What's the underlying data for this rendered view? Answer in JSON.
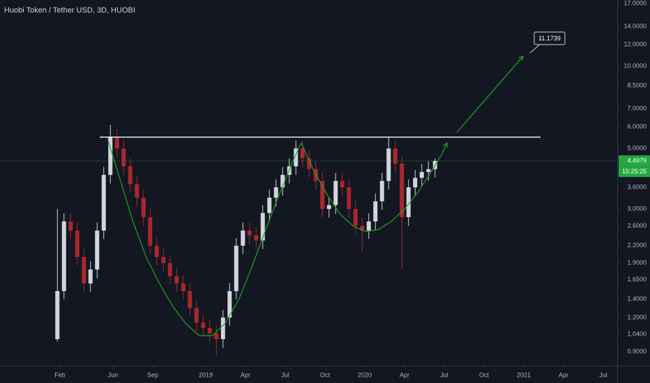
{
  "chart_data": {
    "type": "candlestick",
    "title": "Huobi Token / Tether USD, 3D, HUOBI",
    "log_scale": true,
    "grid": false,
    "up_color": "#d1d4dc",
    "down_color": "#a8282d",
    "xlim": [
      -3.53,
      43.05
    ],
    "ylim": [
      0.8,
      17.5
    ],
    "xticks": [
      {
        "value": 1,
        "label": "Feb"
      },
      {
        "value": 5,
        "label": "Jun"
      },
      {
        "value": 8,
        "label": "Sep"
      },
      {
        "value": 12,
        "label": "2019"
      },
      {
        "value": 15,
        "label": "Apr"
      },
      {
        "value": 18,
        "label": "Jul"
      },
      {
        "value": 21,
        "label": "Oct"
      },
      {
        "value": 24,
        "label": "2020"
      },
      {
        "value": 27,
        "label": "Apr"
      },
      {
        "value": 30,
        "label": "Jul"
      },
      {
        "value": 33,
        "label": "Oct"
      },
      {
        "value": 36,
        "label": "2021"
      },
      {
        "value": 39,
        "label": "Apr"
      },
      {
        "value": 42,
        "label": "Jul"
      }
    ],
    "yticks": [
      {
        "value": 17,
        "label": "17.0000"
      },
      {
        "value": 14,
        "label": "14.0000"
      },
      {
        "value": 12,
        "label": "12.0000"
      },
      {
        "value": 10,
        "label": "10.0000"
      },
      {
        "value": 8.5,
        "label": "8.5000"
      },
      {
        "value": 7,
        "label": "7.0000"
      },
      {
        "value": 6,
        "label": "6.0000"
      },
      {
        "value": 5,
        "label": "5.0000"
      },
      {
        "value": 3.6,
        "label": "3.6000"
      },
      {
        "value": 3,
        "label": "3.0000"
      },
      {
        "value": 2.6,
        "label": "2.6000"
      },
      {
        "value": 2.2,
        "label": "2.2000"
      },
      {
        "value": 1.9,
        "label": "1.9000"
      },
      {
        "value": 1.65,
        "label": "1.6500"
      },
      {
        "value": 1.4,
        "label": "1.4000"
      },
      {
        "value": 1.2,
        "label": "1.2000"
      },
      {
        "value": 1.04,
        "label": "1.0400"
      },
      {
        "value": 0.9,
        "label": "0.9000"
      }
    ],
    "candles": {
      "x": [
        0.8,
        1.3,
        1.8,
        2.3,
        2.8,
        3.3,
        3.8,
        4.3,
        4.8,
        5.3,
        5.8,
        6.3,
        6.8,
        7.3,
        7.8,
        8.3,
        8.8,
        9.3,
        9.8,
        10.3,
        10.8,
        11.3,
        11.8,
        12.3,
        12.8,
        13.3,
        13.8,
        14.3,
        14.8,
        15.3,
        15.8,
        16.3,
        16.8,
        17.3,
        17.8,
        18.3,
        18.8,
        19.3,
        19.8,
        20.3,
        20.8,
        21.3,
        21.8,
        22.3,
        22.8,
        23.3,
        23.8,
        24.3,
        24.8,
        25.3,
        25.8,
        26.3,
        26.8,
        27.3,
        27.8,
        28.3,
        28.8,
        29.3
      ],
      "open": [
        1.0,
        1.5,
        2.7,
        2.5,
        2.0,
        1.6,
        1.8,
        2.5,
        4.0,
        5.5,
        5.0,
        4.3,
        3.7,
        3.3,
        2.8,
        2.2,
        2.0,
        1.9,
        1.7,
        1.6,
        1.5,
        1.3,
        1.15,
        1.1,
        1.05,
        1.0,
        1.2,
        1.5,
        2.2,
        2.5,
        2.4,
        2.3,
        2.9,
        3.3,
        3.6,
        4.0,
        4.3,
        5.0,
        4.6,
        4.2,
        3.8,
        3.0,
        3.1,
        3.8,
        3.6,
        3.0,
        2.6,
        2.5,
        2.7,
        3.2,
        3.8,
        5.0,
        4.4,
        2.8,
        3.6,
        3.9,
        4.1,
        4.2
      ],
      "high": [
        3.0,
        2.89,
        2.89,
        2.68,
        2.14,
        1.93,
        2.68,
        4.28,
        6.1,
        5.89,
        5.35,
        4.6,
        3.96,
        3.53,
        3.0,
        2.35,
        2.14,
        2.03,
        1.82,
        1.71,
        1.61,
        1.39,
        1.23,
        1.18,
        1.12,
        1.28,
        1.61,
        2.35,
        2.68,
        2.68,
        2.57,
        3.1,
        3.53,
        3.85,
        4.28,
        4.6,
        5.35,
        5.35,
        4.92,
        4.49,
        4.07,
        3.32,
        4.07,
        4.07,
        3.85,
        3.21,
        2.78,
        2.89,
        3.42,
        4.07,
        5.5,
        5.35,
        4.71,
        3.85,
        4.17,
        4.39,
        4.49,
        4.6
      ],
      "low": [
        0.98,
        1.4,
        2.33,
        1.86,
        1.49,
        1.49,
        1.67,
        2.33,
        3.72,
        4.65,
        4.0,
        3.44,
        3.07,
        2.6,
        2.05,
        1.86,
        1.77,
        1.58,
        1.49,
        1.4,
        1.21,
        1.07,
        1.02,
        0.98,
        0.87,
        0.93,
        1.12,
        1.4,
        2.05,
        2.23,
        2.14,
        2.14,
        2.7,
        3.07,
        3.35,
        3.72,
        4.0,
        4.28,
        3.91,
        3.53,
        2.79,
        2.79,
        2.88,
        3.35,
        2.79,
        2.42,
        2.1,
        2.33,
        2.51,
        2.98,
        3.53,
        4.09,
        1.8,
        2.6,
        3.35,
        3.63,
        3.81,
        3.91
      ],
      "close": [
        1.5,
        2.7,
        2.5,
        2.0,
        1.6,
        1.8,
        2.5,
        4.0,
        5.5,
        5.0,
        4.3,
        3.7,
        3.3,
        2.8,
        2.2,
        2.0,
        1.9,
        1.7,
        1.6,
        1.5,
        1.3,
        1.15,
        1.1,
        1.05,
        1.0,
        1.2,
        1.5,
        2.2,
        2.5,
        2.4,
        2.3,
        2.9,
        3.3,
        3.6,
        4.0,
        4.3,
        5.0,
        4.6,
        4.2,
        3.8,
        3.0,
        3.1,
        3.8,
        3.6,
        3.0,
        2.6,
        2.5,
        2.7,
        3.2,
        3.8,
        5.0,
        4.4,
        2.8,
        3.6,
        3.9,
        4.1,
        4.2,
        4.5
      ]
    },
    "hline": {
      "value": 5.5,
      "x": [
        4.0,
        37.26
      ],
      "color": "#ffffff"
    },
    "curves": [
      {
        "color": "#1fa51f",
        "x": [
          4.6,
          5.5,
          6.5,
          7.5,
          8.5,
          9.5,
          10.5,
          11.5,
          12.5,
          13.5,
          14.5,
          15.5,
          16.5,
          17.5,
          18.5,
          19.2
        ],
        "values": [
          5.4,
          3.9,
          2.7,
          2.0,
          1.6,
          1.32,
          1.14,
          1.03,
          1.03,
          1.15,
          1.4,
          1.85,
          2.5,
          3.35,
          4.4,
          5.24
        ]
      },
      {
        "color": "#1fa51f",
        "x": [
          19.2,
          20.2,
          21.2,
          22.2,
          23.2,
          24.1,
          25.0,
          26.0,
          27.0,
          28.0,
          29.0,
          29.8,
          30.2
        ],
        "values": [
          5.24,
          4.1,
          3.35,
          2.85,
          2.58,
          2.48,
          2.52,
          2.7,
          3.0,
          3.45,
          4.1,
          4.75,
          5.24
        ]
      }
    ],
    "arrow": {
      "color": "#1fa51f",
      "x": [
        30.95,
        35.95
      ],
      "values": [
        5.73,
        10.9
      ]
    },
    "target_label": 11.1739,
    "last_price": 4.4979,
    "countdown": "15:25:25"
  }
}
